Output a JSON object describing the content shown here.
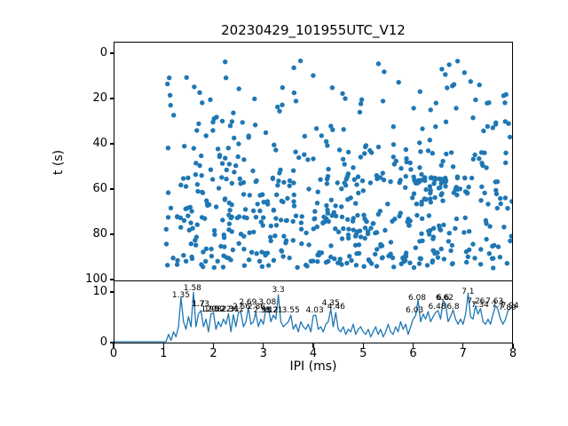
{
  "title": "20230429_101955UTC_V12",
  "colors": {
    "series": "#1f77b4",
    "axis": "#000000",
    "background": "#ffffff"
  },
  "chart_data": {
    "top": {
      "type": "scatter",
      "ylabel": "t (s)",
      "yticks": [
        0,
        20,
        40,
        60,
        80,
        100
      ],
      "ylim": [
        101.5,
        -5.1
      ],
      "y_inverted": true,
      "xlim": [
        0,
        8
      ],
      "grid": false,
      "marker_color": "#1f77b4",
      "points_note": "several hundred unlabeled detection points; IPI from ~1.05 to 8 ms, t from ~1 to ~95 s, density increasing toward larger t with dense horizontal bands near t=56, 73 and 91 s and a cluster near IPI 6-7.2 ms",
      "generator": {
        "seed": 7,
        "n_background": 530,
        "x_min": 1.05,
        "x_max": 7.98,
        "t_min": 0.8,
        "t_max": 95,
        "t_power": 0.6,
        "bands": [
          {
            "t": 56,
            "spread": 1.5,
            "n": 30,
            "x_min": 1.3,
            "x_max": 7.9
          },
          {
            "t": 73,
            "spread": 1.2,
            "n": 22,
            "x_min": 1.2,
            "x_max": 6.6
          },
          {
            "t": 91,
            "spread": 2.0,
            "n": 22,
            "x_min": 1.3,
            "x_max": 7.6
          },
          {
            "t": 58,
            "spread": 4.5,
            "n": 25,
            "x_min": 6.0,
            "x_max": 7.2
          }
        ]
      }
    },
    "bottom": {
      "type": "line",
      "xlabel": "IPI (ms)",
      "xticks": [
        0,
        1,
        2,
        3,
        4,
        5,
        6,
        7,
        8
      ],
      "yticks": [
        0,
        10
      ],
      "ylim": [
        0,
        12.2
      ],
      "xlim": [
        0,
        8
      ],
      "grid": false,
      "line_color": "#1f77b4",
      "x_start": 0,
      "x_step": 0.05,
      "values": [
        0.05,
        0.05,
        0.05,
        0.05,
        0.05,
        0.05,
        0.05,
        0.05,
        0.05,
        0.05,
        0.05,
        0.05,
        0.05,
        0.05,
        0.05,
        0.05,
        0.05,
        0.05,
        0.05,
        0.05,
        0.05,
        0.05,
        1.5,
        0.3,
        2,
        1,
        3,
        8.8,
        4,
        2.5,
        5,
        3,
        9.8,
        3,
        5.5,
        6.2,
        3,
        4.5,
        2,
        5.5,
        5.8,
        2.5,
        4,
        3,
        4.5,
        3.5,
        5.6,
        2,
        5.4,
        3,
        5.8,
        5.9,
        3,
        4,
        6.8,
        3.5,
        4,
        5.8,
        3,
        4.5,
        3.5,
        6.6,
        6.7,
        4,
        5.3,
        4.5,
        9.3,
        4,
        3,
        3.5,
        4,
        5.3,
        2.5,
        3.5,
        2,
        4,
        3,
        2.5,
        3.5,
        2,
        5.2,
        5.3,
        2.5,
        3,
        2,
        3.5,
        4,
        6.5,
        3,
        5.8,
        2.5,
        2,
        3,
        1.5,
        2.5,
        2,
        3.5,
        1.5,
        2.5,
        3,
        2,
        1.5,
        2.5,
        1,
        2,
        3,
        1.5,
        2.5,
        1,
        2,
        3.5,
        2,
        1.5,
        3,
        2,
        4,
        2.5,
        3.5,
        1.5,
        3,
        4.5,
        5.2,
        8.3,
        4,
        5.5,
        4.5,
        6,
        4,
        5,
        5.8,
        6.2,
        4.5,
        8.2,
        7.5,
        4,
        5,
        6.3,
        4.5,
        3.5,
        4.5,
        3.5,
        5.5,
        9.5,
        5,
        4.5,
        7.2,
        5.5,
        6.6,
        4,
        3.5,
        4.5,
        3.5,
        5.5,
        7.2,
        6.4,
        4.5,
        3.5,
        4.5,
        6.2,
        6.6,
        7.1
      ],
      "annotations": [
        {
          "text": "1.35",
          "x": 1.35,
          "y": 9.4
        },
        {
          "text": "1.58",
          "x": 1.58,
          "y": 10.7
        },
        {
          "text": "1.7",
          "x": 1.7,
          "y": 7.6
        },
        {
          "text": "1.73",
          "x": 1.74,
          "y": 7.6
        },
        {
          "text": "1.95",
          "x": 1.93,
          "y": 6.6
        },
        {
          "text": "1.98",
          "x": 1.99,
          "y": 6.6
        },
        {
          "text": "2.02",
          "x": 2.05,
          "y": 6.6
        },
        {
          "text": "2.3",
          "x": 2.28,
          "y": 6.6
        },
        {
          "text": "2.31",
          "x": 2.34,
          "y": 6.6
        },
        {
          "text": "2.41",
          "x": 2.43,
          "y": 6.6
        },
        {
          "text": "2.56",
          "x": 2.56,
          "y": 7.0
        },
        {
          "text": "2.69",
          "x": 2.69,
          "y": 7.9
        },
        {
          "text": "2.86",
          "x": 2.86,
          "y": 7.0
        },
        {
          "text": "2.98",
          "x": 2.98,
          "y": 6.4
        },
        {
          "text": "3.08",
          "x": 3.08,
          "y": 7.9
        },
        {
          "text": "3.12",
          "x": 3.12,
          "y": 6.4
        },
        {
          "text": "3.21",
          "x": 3.21,
          "y": 6.4
        },
        {
          "text": "3.3",
          "x": 3.3,
          "y": 10.4
        },
        {
          "text": "3.55",
          "x": 3.55,
          "y": 6.4
        },
        {
          "text": "4.03",
          "x": 4.03,
          "y": 6.4
        },
        {
          "text": "4.35",
          "x": 4.35,
          "y": 7.7
        },
        {
          "text": "4.46",
          "x": 4.46,
          "y": 7.0
        },
        {
          "text": "6.03",
          "x": 6.03,
          "y": 6.4
        },
        {
          "text": "6.08",
          "x": 6.08,
          "y": 8.9
        },
        {
          "text": "6.48",
          "x": 6.48,
          "y": 7.1
        },
        {
          "text": "6.6",
          "x": 6.6,
          "y": 8.9
        },
        {
          "text": "6.62",
          "x": 6.63,
          "y": 8.9
        },
        {
          "text": "6.8",
          "x": 6.8,
          "y": 7.1
        },
        {
          "text": "7.1",
          "x": 7.1,
          "y": 10.1
        },
        {
          "text": "7.26",
          "x": 7.26,
          "y": 8.2
        },
        {
          "text": "7.34",
          "x": 7.34,
          "y": 7.5
        },
        {
          "text": "7.63",
          "x": 7.63,
          "y": 8.2
        },
        {
          "text": "7.7",
          "x": 7.7,
          "y": 7.5
        },
        {
          "text": "7.89",
          "x": 7.89,
          "y": 6.9
        },
        {
          "text": "7.94",
          "x": 7.94,
          "y": 7.3
        }
      ]
    }
  }
}
